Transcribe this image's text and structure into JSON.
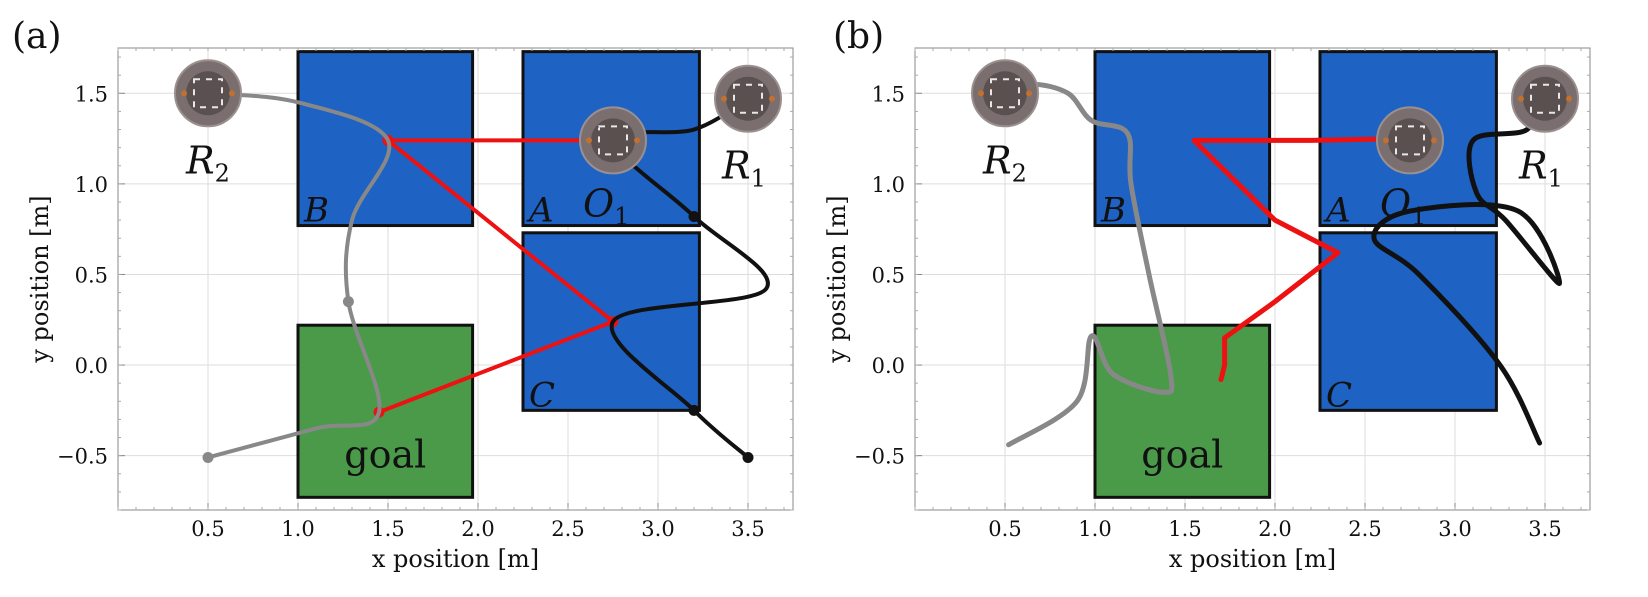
{
  "colors": {
    "region_blue": "#1e62c4",
    "region_green": "#4a9a4a",
    "red_path": "#ee1111",
    "gray_path": "#888888",
    "black_path": "#111111",
    "grid": "#dddddd"
  },
  "chart_data": [
    {
      "panel": "(a)",
      "type": "scatter",
      "xlabel": "x position [m]",
      "ylabel": "y position [m]",
      "xlim": [
        0.0,
        3.75
      ],
      "ylim": [
        -0.8,
        1.75
      ],
      "xticks": [
        "0.5",
        "1.0",
        "1.5",
        "2.0",
        "2.5",
        "3.0",
        "3.5"
      ],
      "yticks": [
        "−0.5",
        "0.0",
        "0.5",
        "1.0",
        "1.5"
      ],
      "grid": true,
      "regions": [
        {
          "label": "B",
          "x0": 1.0,
          "x1": 1.97,
          "y0": 0.77,
          "y1": 1.73,
          "color": "blue"
        },
        {
          "label": "A",
          "x0": 2.25,
          "x1": 3.23,
          "y0": 0.77,
          "y1": 1.73,
          "color": "blue"
        },
        {
          "label": "C",
          "x0": 2.25,
          "x1": 3.23,
          "y0": -0.25,
          "y1": 0.73,
          "color": "blue"
        },
        {
          "label": "goal",
          "x0": 1.0,
          "x1": 1.97,
          "y0": -0.73,
          "y1": 0.22,
          "color": "green"
        }
      ],
      "robots": [
        {
          "label": "R",
          "sub": "2",
          "x": 0.5,
          "y": 1.5
        },
        {
          "label": "R",
          "sub": "1",
          "x": 3.5,
          "y": 1.47
        },
        {
          "label": "O",
          "sub": "1",
          "x": 2.75,
          "y": 1.24
        }
      ],
      "series": [
        {
          "color": "red",
          "x": [
            1.5,
            2.75,
            1.5,
            2.75,
            1.45
          ],
          "y": [
            1.24,
            1.24,
            1.24,
            0.24,
            -0.26
          ],
          "markers": true
        },
        {
          "color": "gray",
          "x": [
            0.5,
            1.0,
            1.5,
            1.3,
            1.28,
            1.45,
            1.1,
            0.5
          ],
          "y": [
            1.5,
            1.45,
            1.24,
            0.8,
            0.35,
            -0.26,
            -0.35,
            -0.51
          ],
          "markers_at": [
            0,
            4,
            7
          ]
        },
        {
          "color": "black",
          "x": [
            3.5,
            3.2,
            2.75,
            3.2,
            3.6,
            2.75,
            3.2,
            3.5
          ],
          "y": [
            1.47,
            1.3,
            1.24,
            0.82,
            0.42,
            0.24,
            -0.25,
            -0.51
          ],
          "markers_at": [
            0,
            3,
            6,
            7
          ]
        }
      ]
    },
    {
      "panel": "(b)",
      "type": "line",
      "xlabel": "x position [m]",
      "ylabel": "y position [m]",
      "xlim": [
        0.0,
        3.75
      ],
      "ylim": [
        -0.8,
        1.75
      ],
      "xticks": [
        "0.5",
        "1.0",
        "1.5",
        "2.0",
        "2.5",
        "3.0",
        "3.5"
      ],
      "yticks": [
        "−0.5",
        "0.0",
        "0.5",
        "1.0",
        "1.5"
      ],
      "grid": true,
      "regions": [
        {
          "label": "B",
          "x0": 1.0,
          "x1": 1.97,
          "y0": 0.77,
          "y1": 1.73,
          "color": "blue"
        },
        {
          "label": "A",
          "x0": 2.25,
          "x1": 3.23,
          "y0": 0.77,
          "y1": 1.73,
          "color": "blue"
        },
        {
          "label": "C",
          "x0": 2.25,
          "x1": 3.23,
          "y0": -0.25,
          "y1": 0.73,
          "color": "blue"
        },
        {
          "label": "goal",
          "x0": 1.0,
          "x1": 1.97,
          "y0": -0.73,
          "y1": 0.22,
          "color": "green"
        }
      ],
      "robots": [
        {
          "label": "R",
          "sub": "2",
          "x": 0.5,
          "y": 1.5
        },
        {
          "label": "R",
          "sub": "1",
          "x": 3.5,
          "y": 1.47
        },
        {
          "label": "O",
          "sub": "1",
          "x": 2.75,
          "y": 1.24
        }
      ],
      "series": [
        {
          "color": "red",
          "x": [
            2.75,
            2.2,
            1.55,
            2.0,
            2.35,
            2.0,
            1.72,
            1.72,
            1.7
          ],
          "y": [
            1.25,
            1.24,
            1.24,
            0.8,
            0.62,
            0.35,
            0.15,
            0.0,
            -0.08
          ]
        },
        {
          "color": "gray",
          "x": [
            0.5,
            0.65,
            0.85,
            0.98,
            1.18,
            1.2,
            1.3,
            1.42,
            1.38,
            1.1,
            0.98,
            0.9,
            0.52
          ],
          "y": [
            1.5,
            1.55,
            1.5,
            1.35,
            1.28,
            1.0,
            0.5,
            -0.05,
            -0.15,
            -0.05,
            0.16,
            -0.2,
            -0.44
          ]
        },
        {
          "color": "black",
          "x": [
            3.48,
            3.4,
            3.1,
            3.12,
            3.28,
            3.58,
            3.35,
            2.75,
            2.55,
            2.8,
            3.25,
            3.47
          ],
          "y": [
            1.5,
            1.3,
            1.24,
            0.95,
            0.8,
            0.45,
            0.85,
            0.85,
            0.7,
            0.5,
            0.0,
            -0.43
          ]
        }
      ]
    }
  ]
}
